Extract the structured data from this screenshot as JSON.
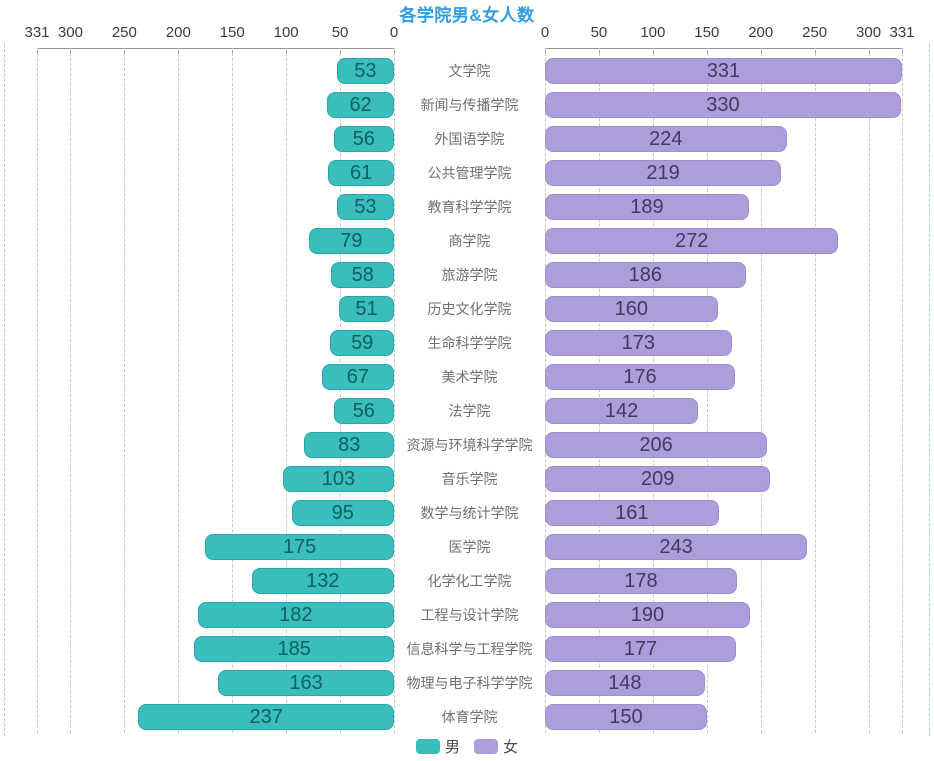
{
  "chart_data": {
    "type": "bar",
    "variant": "mirrored-horizontal-tornado",
    "title": "各学院男&女人数",
    "axis_max": 331,
    "axis_ticks": [
      0,
      50,
      100,
      150,
      200,
      250,
      300,
      331
    ],
    "grid": true,
    "legend_position": "bottom-center",
    "categories": [
      "文学院",
      "新闻与传播学院",
      "外国语学院",
      "公共管理学院",
      "教育科学学院",
      "商学院",
      "旅游学院",
      "历史文化学院",
      "生命科学学院",
      "美术学院",
      "法学院",
      "资源与环境科学学院",
      "音乐学院",
      "数学与统计学院",
      "医学院",
      "化学化工学院",
      "工程与设计学院",
      "信息科学与工程学院",
      "物理与电子科学学院",
      "体育学院"
    ],
    "series": [
      {
        "name": "男",
        "side": "left",
        "color": "#3abdbd",
        "border_color": "#2aa6a6",
        "value_color": "#0f6060",
        "values": [
          53,
          62,
          56,
          61,
          53,
          79,
          58,
          51,
          59,
          67,
          56,
          83,
          103,
          95,
          175,
          132,
          182,
          185,
          163,
          237
        ]
      },
      {
        "name": "女",
        "side": "right",
        "color": "#ad9edb",
        "border_color": "#9d8fcc",
        "value_color": "#44385f",
        "values": [
          331,
          330,
          224,
          219,
          189,
          272,
          186,
          160,
          173,
          176,
          142,
          206,
          209,
          161,
          243,
          178,
          190,
          177,
          148,
          150
        ]
      }
    ]
  },
  "colors": {
    "background": "#ffffff",
    "title": "#2f9ce4",
    "axis_label": "#3c3c3c",
    "axis_line": "#8f959b",
    "gridline": "#c7c7c7",
    "edge_line": "#a9c7e6",
    "category_label": "#6f6f6f"
  }
}
